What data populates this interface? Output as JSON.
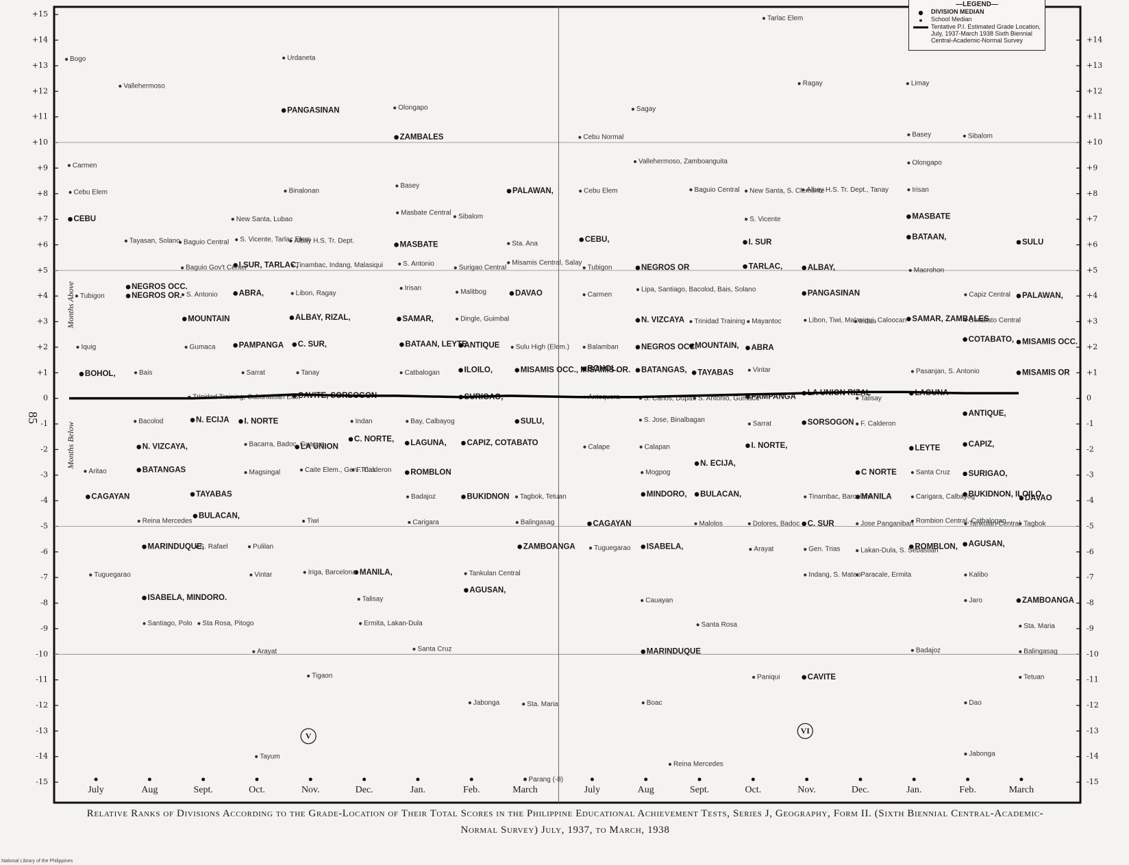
{
  "page_number": "85",
  "footer": "National Library of the Philippines",
  "caption": "Relative Ranks of Divisions According to the Grade-Location of Their Total Scores in the Philippine Educational Achievement Tests, Series J, Geography, Form II. (Sixth Biennial Central-Academic-Normal Survey) July, 1937, to March, 1938",
  "chart_data": {
    "type": "scatter",
    "legend_title": "—LEGEND—",
    "legend": "upper right",
    "ylabel_above": "Months Above",
    "ylabel_below": "Months Below",
    "xlim": [
      -0.78,
      18.35
    ],
    "ylim": [
      -15.8,
      15.3
    ],
    "y2lim": [
      -15.8,
      15.3
    ],
    "xticks": [
      {
        "value": 0,
        "label": "July"
      },
      {
        "value": 1,
        "label": "Aug"
      },
      {
        "value": 2,
        "label": "Sept."
      },
      {
        "value": 3,
        "label": "Oct."
      },
      {
        "value": 4,
        "label": "Nov."
      },
      {
        "value": 5,
        "label": "Dec."
      },
      {
        "value": 6,
        "label": "Jan."
      },
      {
        "value": 7,
        "label": "Feb."
      },
      {
        "value": 8,
        "label": "March"
      },
      {
        "value": 9.25,
        "label": "July"
      },
      {
        "value": 10.25,
        "label": "Aug"
      },
      {
        "value": 11.25,
        "label": "Sept."
      },
      {
        "value": 12.25,
        "label": "Oct."
      },
      {
        "value": 13.25,
        "label": "Nov."
      },
      {
        "value": 14.25,
        "label": "Dec."
      },
      {
        "value": 15.25,
        "label": "Jan."
      },
      {
        "value": 16.25,
        "label": "Feb."
      },
      {
        "value": 17.25,
        "label": "March"
      }
    ],
    "yticks": [
      {
        "value": 15,
        "label": "+15"
      },
      {
        "value": 14,
        "label": "+14"
      },
      {
        "value": 13,
        "label": "+13"
      },
      {
        "value": 12,
        "label": "+12"
      },
      {
        "value": 11,
        "label": "+11"
      },
      {
        "value": 10,
        "label": "+10"
      },
      {
        "value": 9,
        "label": "+9"
      },
      {
        "value": 8,
        "label": "+8"
      },
      {
        "value": 7,
        "label": "+7"
      },
      {
        "value": 6,
        "label": "+6"
      },
      {
        "value": 5,
        "label": "+5"
      },
      {
        "value": 4,
        "label": "+4"
      },
      {
        "value": 3,
        "label": "+3"
      },
      {
        "value": 2,
        "label": "+2"
      },
      {
        "value": 1,
        "label": "+1"
      },
      0,
      -1,
      -2,
      -3,
      -4,
      -5,
      -6,
      -7,
      -8,
      -9,
      -10,
      -11,
      -12,
      -13,
      -14,
      -15
    ],
    "y2ticks": [
      {
        "value": 14,
        "label": "+14"
      },
      {
        "value": 13,
        "label": "+13"
      },
      {
        "value": 12,
        "label": "+12"
      },
      {
        "value": 11,
        "label": "+11"
      },
      {
        "value": 10,
        "label": "+10"
      },
      {
        "value": 9,
        "label": "+9"
      },
      {
        "value": 8,
        "label": "+8"
      },
      {
        "value": 7,
        "label": "+7"
      },
      {
        "value": 6,
        "label": "+6"
      },
      {
        "value": 5,
        "label": "+5"
      },
      {
        "value": 4,
        "label": "+4"
      },
      {
        "value": 3,
        "label": "+3"
      },
      {
        "value": 2,
        "label": "+2"
      },
      {
        "value": 1,
        "label": "+1"
      },
      0,
      -1,
      -2,
      -3,
      -4,
      -5,
      -6,
      -7,
      -8,
      -9,
      -10,
      -11,
      -12,
      -13,
      -14,
      -15
    ],
    "reference_lines": [
      10,
      5,
      -5,
      -10
    ],
    "annotations": [
      {
        "text": "V",
        "x": 3.96,
        "y": -13.2
      },
      {
        "text": "VI",
        "x": 13.22,
        "y": -13.0
      }
    ],
    "series": [
      {
        "name": "DIVISION MEDIAN",
        "type": "scatter",
        "color": "#111111",
        "labels": [
          "CEBU",
          "BOHOL,",
          "CAGAYAN",
          "NEGROS OCC.",
          "NEGROS OR.",
          "N. VIZCAYA,",
          "BATANGAS",
          "MARINDUQUE,",
          "ISABELA, MINDORO.",
          "MOUNTAIN",
          "N. ECIJA",
          "TAYABAS",
          "BULACAN,",
          "I.SUR, TARLAC,",
          "ABRA,",
          "PAMPANGA",
          "I. NORTE",
          "PANGASINAN",
          "ALBAY, RIZAL,",
          "C. SUR,",
          "CAVITE, SORSOGON",
          "LA UNION",
          "C. NORTE,",
          "MANILA,",
          "ZAMBALES",
          "MASBATE",
          "SAMAR,",
          "BATAAN, LEYTE",
          "LAGUNA,",
          "ROMBLON",
          "ANTIQUE",
          "ILOILO,",
          "SURIGAO,",
          "CAPIZ, COTABATO",
          "BUKIDNON",
          "AGUSAN,",
          "PALAWAN,",
          "DAVAO",
          "MISAMIS OCC., MISAMIS OR.",
          "SULU,",
          "ZAMBOANGA",
          "CEBU,",
          "BOHOL,",
          "CAGAYAN",
          "NEGROS OR",
          "N. VIZCAYA",
          "NEGROS OCC.",
          "BATANGAS,",
          "MINDORO,",
          "ISABELA,",
          "MARINDUQUE",
          "MOUNTAIN,",
          "TAYABAS",
          "N. ECIJA,",
          "BULACAN,",
          "I. SUR",
          "TARLAC,",
          "ABRA",
          "PAMPANGA",
          "I. NORTE,",
          "ALBAY,",
          "PANGASINAN",
          "LA UNION RIZAL",
          "SORSOGON",
          "C. SUR",
          "CAVITE",
          "C NORTE",
          "MANILA",
          "MASBATE",
          "BATAAN,",
          "SAMAR, ZAMBALES",
          "LAGUNA",
          "LEYTE",
          "ROMBLON,",
          "COTABATO,",
          "ANTIQUE,",
          "CAPIZ,",
          "SURIGAO,",
          "BUKIDNON, ILOILO",
          "AGUSAN,",
          "DAVAO",
          "SULU",
          "PALAWAN,",
          "MISAMIS OCC.",
          "MISAMIS OR",
          "ZAMBOANGA"
        ],
        "x": [
          -0.48,
          -0.27,
          -0.15,
          0.6,
          0.6,
          0.8,
          0.8,
          0.9,
          0.9,
          1.65,
          1.8,
          1.8,
          1.85,
          2.6,
          2.6,
          2.6,
          2.7,
          3.5,
          3.65,
          3.7,
          3.7,
          3.75,
          4.75,
          4.85,
          5.6,
          5.6,
          5.65,
          5.7,
          5.8,
          5.8,
          6.8,
          6.8,
          6.8,
          6.85,
          6.85,
          6.9,
          7.7,
          7.75,
          7.85,
          7.85,
          7.9,
          9.05,
          9.1,
          9.2,
          10.1,
          10.1,
          10.1,
          10.1,
          10.2,
          10.2,
          10.2,
          11.1,
          11.15,
          11.2,
          11.2,
          12.1,
          12.1,
          12.15,
          12.15,
          12.15,
          13.2,
          13.2,
          13.2,
          13.2,
          13.2,
          13.2,
          14.2,
          14.2,
          15.15,
          15.15,
          15.15,
          15.2,
          15.2,
          15.2,
          16.2,
          16.2,
          16.2,
          16.2,
          16.2,
          16.2,
          17.25,
          17.2,
          17.2,
          17.2,
          17.2,
          17.2
        ],
        "values": [
          7.0,
          0.95,
          -3.85,
          4.35,
          4.0,
          -1.9,
          -2.8,
          -5.8,
          -7.8,
          3.1,
          -0.85,
          -3.75,
          -4.6,
          5.2,
          4.1,
          2.07,
          -0.9,
          11.25,
          3.15,
          2.1,
          0.1,
          -1.9,
          -1.6,
          -6.8,
          10.2,
          6.0,
          3.1,
          2.1,
          -1.75,
          -2.9,
          2.07,
          1.1,
          0.05,
          -1.75,
          -3.85,
          -7.5,
          8.1,
          4.1,
          1.1,
          -0.9,
          -5.8,
          6.2,
          1.15,
          -4.9,
          5.1,
          3.05,
          2.0,
          1.1,
          -3.75,
          -5.8,
          -9.9,
          2.05,
          1.0,
          -2.55,
          -3.75,
          6.1,
          5.15,
          1.97,
          0.06,
          -1.85,
          5.1,
          4.1,
          0.2,
          -0.95,
          -4.9,
          -10.9,
          -2.9,
          -3.85,
          7.1,
          6.3,
          3.1,
          0.2,
          -1.95,
          -5.8,
          2.3,
          -0.6,
          -1.8,
          -2.95,
          -3.75,
          -5.7,
          -3.9,
          6.1,
          4.0,
          2.2,
          1.0,
          -7.9
        ]
      },
      {
        "name": "School Median",
        "type": "scatter",
        "color": "#333333",
        "labels": [
          "Bogo",
          "Carmen",
          "Cebu Elem",
          "Tubigon",
          "Iquig",
          "Aritao",
          "Tuguegarao",
          "Vallehermoso",
          "Tayasan, Solano",
          "Bais",
          "Bacolod",
          "Reina Mercedes",
          "Santiago, Polo",
          "Baguio Central",
          "Baguio Gov't Center",
          "S. Antonio",
          "Gumaca",
          "Trinidad Training, Cabanatuan East",
          "S. Rafael",
          "Sta Rosa, Pitogo",
          "Urdaneta",
          "Binalonan",
          "New Santa, Lubao",
          "S. Vicente, Tarlac Elem",
          "Sarrat",
          "Bacarra, Badoc, Guagua",
          "Magsingal",
          "Pulilan",
          "Vintar",
          "Arayat",
          "Tayum",
          "Albay H.S. Tr. Dept.",
          "Tinambac, Indang, Malasiqui",
          "Libon, Ragay",
          "Tanay",
          "Caite Elem., Gen. Trias",
          "Tiwi",
          "Iriga, Barcelona",
          "Tigaon",
          "Indan",
          "F. Calderon",
          "Talisay",
          "Ermita, Lakan-Dula",
          "Olongapo",
          "Basey",
          "Masbate Central",
          "S. Antonio",
          "Irisan",
          "Catbalogan",
          "Bay, Calbayog",
          "Badajoz",
          "Carigara",
          "Santa Cruz",
          "Sibalom",
          "Surigao Central",
          "Malitbog",
          "Dingle, Guimbal",
          "Tankulan Central",
          "Jabonga",
          "Sta. Ana",
          "Misamis Central, Salay",
          "Sulu High (Elem.)",
          "Tagbok, Tetuan",
          "Balingasag",
          "Sta. Maria",
          "Parang (-8)",
          "Cebu Normal",
          "Cebu Elem",
          "Tubigon",
          "Carmen",
          "Balamban",
          "Antequera",
          "Calape",
          "Tuguegarao",
          "Sagay",
          "Vallehermoso, Zamboanguita",
          "Lipa, Santiago, Bacolod, Bais, Solano",
          "S. Carlos, Dupax",
          "S. Jose, Binalbagan",
          "Calapan",
          "Mogpog",
          "Cauayan",
          "Boac",
          "Reina Mercedes",
          "Baguio Central",
          "Trinidad Training",
          "S. Antonio, Gumaca",
          "Malolos",
          "Santa Rosa",
          "New Santa, S. Clemente",
          "S. Vicente",
          "Mayantoc",
          "Vintar",
          "Sarrat",
          "Dolores, Badoc",
          "Arayat",
          "Paniqui",
          "Tarlac Elem",
          "Ragay",
          "Albay H.S. Tr. Dept., Tanay",
          "Libon, Tiwi, Malasiqui, Caloocan",
          "Tinambac, Barcelona",
          "Gen. Trias",
          "Indang, S. Mateo",
          "Indan",
          "Talisay",
          "F. Calderon",
          "Jose Panganiban",
          "Lakan-Dula, S. Sebastian",
          "Paracale, Ermita",
          "Limay",
          "Basey",
          "Olongapo",
          "Irisan",
          "Macrohon",
          "Pasanjan, S. Antonio",
          "Santa Cruz",
          "Carigara, Calbayog",
          "Rombion Central, Catbalogan",
          "Badajoz",
          "Sibalom",
          "Capiz Central",
          "Cotabato Central",
          "Tankulan Central",
          "Kalibo",
          "Jaro",
          "Dao",
          "Jabonga",
          "Tagbok",
          "Sta. Maria",
          "Balingasag",
          "Tetuan"
        ],
        "x": [
          -0.55,
          -0.5,
          -0.48,
          -0.36,
          -0.34,
          -0.2,
          -0.1,
          0.45,
          0.56,
          0.74,
          0.73,
          0.8,
          0.9,
          1.57,
          1.61,
          1.62,
          1.68,
          1.74,
          1.87,
          1.92,
          3.5,
          3.53,
          2.55,
          2.62,
          2.74,
          2.79,
          2.79,
          2.86,
          2.89,
          2.94,
          2.99,
          3.63,
          3.66,
          3.66,
          3.76,
          3.83,
          3.87,
          3.89,
          3.96,
          4.77,
          4.79,
          4.9,
          4.93,
          5.57,
          5.61,
          5.62,
          5.66,
          5.69,
          5.69,
          5.8,
          5.81,
          5.84,
          5.93,
          6.69,
          6.7,
          6.73,
          6.73,
          6.89,
          6.97,
          7.69,
          7.69,
          7.76,
          7.84,
          7.85,
          7.97,
          8.0,
          9.02,
          9.03,
          9.1,
          9.1,
          9.1,
          9.11,
          9.11,
          9.22,
          10.01,
          10.05,
          10.1,
          10.15,
          10.15,
          10.16,
          10.18,
          10.18,
          10.2,
          10.7,
          11.09,
          11.09,
          11.16,
          11.18,
          11.22,
          12.12,
          12.12,
          12.16,
          12.18,
          12.18,
          12.18,
          12.2,
          12.26,
          12.45,
          13.11,
          13.18,
          13.22,
          13.22,
          13.22,
          13.22,
          14.16,
          14.19,
          14.19,
          14.19,
          14.19,
          14.19,
          15.13,
          15.15,
          15.15,
          15.15,
          15.18,
          15.22,
          15.22,
          15.22,
          15.22,
          15.22,
          16.19,
          16.21,
          16.21,
          16.21,
          16.21,
          16.21,
          16.21,
          16.21,
          17.23,
          17.23,
          17.23,
          17.23
        ],
        "values": [
          13.25,
          9.1,
          8.05,
          4.0,
          2.0,
          -2.85,
          -6.9,
          12.2,
          6.15,
          1.0,
          -0.9,
          -4.8,
          -8.8,
          6.1,
          5.1,
          4.05,
          2.0,
          0.05,
          -5.8,
          -8.8,
          13.3,
          8.1,
          7.0,
          6.2,
          1.0,
          -1.8,
          -2.9,
          -5.8,
          -6.9,
          -9.9,
          -14.0,
          6.15,
          5.2,
          4.1,
          1.0,
          -2.8,
          -4.8,
          -6.8,
          -10.85,
          -0.9,
          -2.8,
          -7.85,
          -8.8,
          11.35,
          8.3,
          7.25,
          5.25,
          4.3,
          1.0,
          -0.9,
          -3.85,
          -4.85,
          -9.8,
          7.1,
          5.1,
          4.15,
          3.1,
          -6.85,
          -11.9,
          6.05,
          5.3,
          2.0,
          -3.85,
          -4.85,
          -11.95,
          -14.9,
          10.2,
          8.1,
          5.1,
          4.05,
          2.0,
          0.05,
          -1.9,
          -5.85,
          11.3,
          9.25,
          4.25,
          0.0,
          -0.85,
          -1.9,
          -2.9,
          -7.9,
          -11.9,
          -14.3,
          8.15,
          3.0,
          0.0,
          -4.9,
          -8.85,
          8.1,
          7.0,
          3.0,
          1.1,
          -1.0,
          -4.9,
          -5.9,
          -10.9,
          14.85,
          12.3,
          8.15,
          3.05,
          -3.85,
          -5.9,
          -6.9,
          3.0,
          0.0,
          -1.0,
          -4.9,
          -5.95,
          -6.9,
          12.3,
          10.3,
          9.2,
          8.15,
          5.0,
          1.05,
          -2.9,
          -3.85,
          -4.8,
          -9.85,
          10.25,
          4.05,
          3.05,
          -4.9,
          -6.9,
          -7.9,
          -11.9,
          -13.9,
          -4.9,
          -8.9,
          -9.9,
          -10.9
        ]
      },
      {
        "name": "Tentative P.I. Estimated Grade Location, July, 1937-March 1938 Sixth Biennial Central-Academic-Normal Survey",
        "type": "line",
        "color": "#000000",
        "x": [
          -0.5,
          0.8,
          1.8,
          2.6,
          3.7,
          4.8,
          5.6,
          6.8,
          7.7,
          9.0,
          10.1,
          11.1,
          12.1,
          13.2,
          14.2,
          15.1,
          16.2,
          17.2
        ],
        "values": [
          0,
          0,
          0,
          0.05,
          0.15,
          0.1,
          0.1,
          0.05,
          0.1,
          0.05,
          0.05,
          0.1,
          0.15,
          0.2,
          0.25,
          0.25,
          0.2,
          0.2
        ]
      }
    ]
  }
}
